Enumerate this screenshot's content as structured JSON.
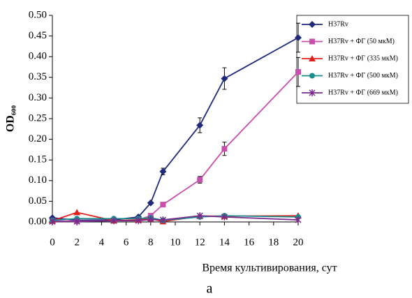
{
  "chart_data": {
    "type": "line",
    "x_label": "Время культивирования, сут",
    "y_label": "OD₆₀₀",
    "caption": "а",
    "x": [
      0,
      2,
      5,
      7,
      8,
      9,
      12,
      14,
      20
    ],
    "xlim": [
      0,
      20
    ],
    "xticks": [
      0,
      2,
      4,
      6,
      8,
      10,
      12,
      14,
      16,
      18,
      20
    ],
    "ylim": [
      0,
      0.5
    ],
    "yticks": [
      {
        "value": 0,
        "label": "0.00"
      },
      {
        "value": 0.05,
        "label": "0.05"
      },
      {
        "value": 0.1,
        "label": "0.10"
      },
      {
        "value": 0.15,
        "label": "0.15"
      },
      {
        "value": 0.2,
        "label": "0.20"
      },
      {
        "value": 0.25,
        "label": "0.25"
      },
      {
        "value": 0.3,
        "label": "0.30"
      },
      {
        "value": 0.35,
        "label": "0.35"
      },
      {
        "value": 0.4,
        "label": "0.40"
      },
      {
        "value": 0.45,
        "label": "0.45"
      },
      {
        "value": 0.5,
        "label": "0.50"
      }
    ],
    "grid": false,
    "legend": "right",
    "series": [
      {
        "name": "H37Rv",
        "color": "#1f2a7a",
        "marker": "diamond",
        "values": [
          0.01,
          0.004,
          0.005,
          0.012,
          0.046,
          0.122,
          0.234,
          0.347,
          0.446
        ],
        "errors": [
          null,
          null,
          null,
          null,
          null,
          0.008,
          0.018,
          0.026,
          0.035
        ]
      },
      {
        "name": "H37Rv + ФГ (50 мкМ)",
        "color": "#c94fad",
        "marker": "square",
        "values": [
          0.002,
          0.002,
          0.003,
          0.005,
          0.015,
          0.042,
          0.102,
          0.177,
          0.363
        ],
        "errors": [
          null,
          null,
          null,
          null,
          null,
          null,
          0.008,
          0.016,
          0.035
        ]
      },
      {
        "name": "H37Rv + ФГ (335 мкМ)",
        "color": "#e0201b",
        "marker": "triangle",
        "values": [
          0.003,
          0.023,
          0.003,
          0.005,
          0.008,
          0.001,
          0.014,
          0.014,
          0.015
        ]
      },
      {
        "name": "H37Rv + ФГ (500 мкМ)",
        "color": "#1a8c8c",
        "marker": "circle",
        "values": [
          0.004,
          0.008,
          0.008,
          0.008,
          0.01,
          0.004,
          0.012,
          0.015,
          0.012
        ]
      },
      {
        "name": "H37Rv + ФГ (669 мкМ)",
        "color": "#7a2a8c",
        "marker": "star",
        "values": [
          0.001,
          0.001,
          0.003,
          0.003,
          0.006,
          0.005,
          0.015,
          0.012,
          0.005
        ]
      }
    ]
  }
}
